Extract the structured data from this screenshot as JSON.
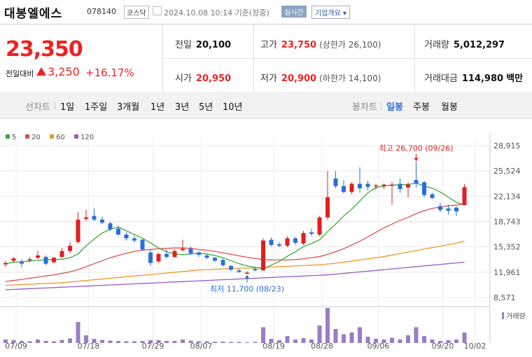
{
  "header": {
    "name": "대봉엘에스",
    "code": "078140",
    "market": "코스닥",
    "datetime": "2024.10.08 10:14 기준(장중)",
    "live": "실시간",
    "company_info": "기업개요"
  },
  "quote": {
    "price": "23,350",
    "compare_label": "전일대비",
    "change": "3,250",
    "change_pct": "+16.17%",
    "prev_close": {
      "label": "전일",
      "value": "20,100"
    },
    "high": {
      "label": "고가",
      "value": "23,750",
      "limit_label": "(상한가 26,100)"
    },
    "volume": {
      "label": "거래량",
      "value": "5,012,297"
    },
    "open": {
      "label": "시가",
      "value": "20,950"
    },
    "low": {
      "label": "저가",
      "value": "20,900",
      "limit_label": "(하한가 14,100)"
    },
    "amount": {
      "label": "거래대금",
      "value": "114,980",
      "unit": "백만"
    }
  },
  "tabs": {
    "line_label": "선차트",
    "periods": [
      "1일",
      "1주일",
      "3개월",
      "1년",
      "3년",
      "5년",
      "10년"
    ],
    "candle_label": "봉차트",
    "candles": [
      "일봉",
      "주봉",
      "월봉"
    ],
    "selected_candle": "일봉"
  },
  "colors": {
    "up": "#e02020",
    "down": "#2b6fd6",
    "ma5": "#3aaa35",
    "ma20": "#e05050",
    "ma60": "#f0962a",
    "ma120": "#9b59c9",
    "volume": "#9a7ec4"
  },
  "chart_data": {
    "type": "candlestick",
    "legend": [
      "5",
      "20",
      "60",
      "120"
    ],
    "y_ticks": [
      28915,
      25524,
      22134,
      18743,
      15352,
      11961,
      8571
    ],
    "ylim": [
      8571,
      28915
    ],
    "x_ticks": [
      "07/09",
      "07/18",
      "07/29",
      "08/07",
      "08/19",
      "08/28",
      "09/06",
      "09/20",
      "10/02"
    ],
    "volume_label": "거래량",
    "annotations": {
      "high": "최고 26,700 (09/26)",
      "low": "최저 11,700 (08/23)"
    },
    "candles": [
      {
        "o": 13000,
        "h": 13500,
        "l": 12700,
        "c": 13200
      },
      {
        "o": 13500,
        "h": 14000,
        "l": 13200,
        "c": 13800
      },
      {
        "o": 13400,
        "h": 13700,
        "l": 12600,
        "c": 13100
      },
      {
        "o": 13600,
        "h": 14000,
        "l": 13300,
        "c": 13700
      },
      {
        "o": 13900,
        "h": 14800,
        "l": 13700,
        "c": 14200
      },
      {
        "o": 14000,
        "h": 14200,
        "l": 12900,
        "c": 13100
      },
      {
        "o": 13300,
        "h": 14000,
        "l": 13100,
        "c": 13900
      },
      {
        "o": 14000,
        "h": 15200,
        "l": 13900,
        "c": 14800
      },
      {
        "o": 14800,
        "h": 16000,
        "l": 14500,
        "c": 15500
      },
      {
        "o": 16000,
        "h": 20000,
        "l": 15800,
        "c": 19000
      },
      {
        "o": 19100,
        "h": 20300,
        "l": 18800,
        "c": 19300
      },
      {
        "o": 19500,
        "h": 20500,
        "l": 18800,
        "c": 19000
      },
      {
        "o": 19000,
        "h": 19400,
        "l": 18400,
        "c": 18600
      },
      {
        "o": 18500,
        "h": 18700,
        "l": 17500,
        "c": 17700
      },
      {
        "o": 17800,
        "h": 18200,
        "l": 16800,
        "c": 17000
      },
      {
        "o": 17000,
        "h": 17300,
        "l": 16200,
        "c": 16500
      },
      {
        "o": 16500,
        "h": 16800,
        "l": 15900,
        "c": 16200
      },
      {
        "o": 16300,
        "h": 16400,
        "l": 14800,
        "c": 15000
      },
      {
        "o": 14600,
        "h": 15000,
        "l": 12800,
        "c": 13200
      },
      {
        "o": 13400,
        "h": 14600,
        "l": 13200,
        "c": 14400
      },
      {
        "o": 14400,
        "h": 15000,
        "l": 13800,
        "c": 14000
      },
      {
        "o": 14000,
        "h": 15000,
        "l": 13900,
        "c": 14800
      },
      {
        "o": 14900,
        "h": 16300,
        "l": 14700,
        "c": 15100
      },
      {
        "o": 15100,
        "h": 15400,
        "l": 14300,
        "c": 14500
      },
      {
        "o": 14600,
        "h": 14800,
        "l": 14000,
        "c": 14300
      },
      {
        "o": 14200,
        "h": 14400,
        "l": 13700,
        "c": 13900
      },
      {
        "o": 13900,
        "h": 14000,
        "l": 13300,
        "c": 13500
      },
      {
        "o": 13600,
        "h": 13800,
        "l": 12700,
        "c": 12900
      },
      {
        "o": 12800,
        "h": 12900,
        "l": 12100,
        "c": 12300
      },
      {
        "o": 12200,
        "h": 12400,
        "l": 11900,
        "c": 12000
      },
      {
        "o": 11900,
        "h": 12100,
        "l": 11700,
        "c": 11900
      },
      {
        "o": 12400,
        "h": 12700,
        "l": 12100,
        "c": 12200
      },
      {
        "o": 12200,
        "h": 16500,
        "l": 12100,
        "c": 16200
      },
      {
        "o": 16300,
        "h": 16600,
        "l": 15400,
        "c": 15600
      },
      {
        "o": 15700,
        "h": 16000,
        "l": 15300,
        "c": 15500
      },
      {
        "o": 15500,
        "h": 16800,
        "l": 15300,
        "c": 16500
      },
      {
        "o": 16500,
        "h": 16700,
        "l": 15600,
        "c": 15900
      },
      {
        "o": 15800,
        "h": 17500,
        "l": 15600,
        "c": 17200
      },
      {
        "o": 17300,
        "h": 17800,
        "l": 16800,
        "c": 17100
      },
      {
        "o": 17000,
        "h": 19500,
        "l": 16800,
        "c": 19300
      },
      {
        "o": 19300,
        "h": 25500,
        "l": 19000,
        "c": 22000
      },
      {
        "o": 24500,
        "h": 25500,
        "l": 23200,
        "c": 23500
      },
      {
        "o": 23500,
        "h": 24300,
        "l": 22500,
        "c": 22700
      },
      {
        "o": 22700,
        "h": 24000,
        "l": 22400,
        "c": 23800
      },
      {
        "o": 23800,
        "h": 26000,
        "l": 22600,
        "c": 23200
      },
      {
        "o": 23800,
        "h": 24200,
        "l": 22900,
        "c": 23400
      },
      {
        "o": 23500,
        "h": 23800,
        "l": 23000,
        "c": 23600
      },
      {
        "o": 23500,
        "h": 23800,
        "l": 23100,
        "c": 23700
      },
      {
        "o": 23600,
        "h": 24000,
        "l": 21000,
        "c": 23700
      },
      {
        "o": 23800,
        "h": 24500,
        "l": 22600,
        "c": 23100
      },
      {
        "o": 23300,
        "h": 24000,
        "l": 22000,
        "c": 23700
      },
      {
        "o": 24300,
        "h": 26700,
        "l": 23300,
        "c": 23800
      },
      {
        "o": 24000,
        "h": 24200,
        "l": 22000,
        "c": 22300
      },
      {
        "o": 22400,
        "h": 22600,
        "l": 21800,
        "c": 21900
      },
      {
        "o": 20800,
        "h": 21300,
        "l": 20000,
        "c": 20300
      },
      {
        "o": 20500,
        "h": 21000,
        "l": 19700,
        "c": 20200
      },
      {
        "o": 20600,
        "h": 20800,
        "l": 19500,
        "c": 20100
      },
      {
        "o": 20950,
        "h": 23750,
        "l": 20900,
        "c": 23350
      }
    ],
    "ma5": [
      13100,
      13300,
      13350,
      13450,
      13550,
      13600,
      13650,
      13700,
      13900,
      14400,
      15500,
      16400,
      17200,
      17700,
      18000,
      17500,
      17000,
      16500,
      15900,
      15200,
      14700,
      14400,
      14300,
      14400,
      14500,
      14400,
      14200,
      13900,
      13500,
      13100,
      12800,
      12600,
      12400,
      12900,
      13400,
      14100,
      14700,
      15400,
      15800,
      16300,
      17400,
      18400,
      19500,
      20400,
      21500,
      22600,
      23300,
      23500,
      23600,
      23700,
      23700,
      23900,
      23500,
      23200,
      22700,
      22000,
      21300,
      21000
    ],
    "ma20": [
      10700,
      10850,
      11000,
      11150,
      11300,
      11450,
      11600,
      11800,
      12000,
      12300,
      12700,
      13100,
      13500,
      13900,
      14200,
      14500,
      14750,
      14900,
      15000,
      15100,
      15150,
      15200,
      15200,
      15150,
      15000,
      14900,
      14750,
      14550,
      14350,
      14150,
      13950,
      13800,
      13650,
      13600,
      13600,
      13600,
      13650,
      13750,
      13900,
      14050,
      14350,
      14700,
      15100,
      15600,
      16100,
      16700,
      17300,
      17900,
      18400,
      18900,
      19300,
      19800,
      20200,
      20500,
      20700,
      20850,
      20950,
      21100
    ],
    "ma60": [
      10200,
      10250,
      10300,
      10350,
      10400,
      10450,
      10500,
      10550,
      10650,
      10750,
      10850,
      10950,
      11050,
      11150,
      11250,
      11350,
      11450,
      11550,
      11650,
      11750,
      11850,
      11950,
      12050,
      12150,
      12250,
      12300,
      12350,
      12400,
      12450,
      12500,
      12500,
      12550,
      12600,
      12650,
      12700,
      12750,
      12800,
      12850,
      12900,
      12950,
      13050,
      13150,
      13300,
      13450,
      13600,
      13750,
      13900,
      14050,
      14250,
      14450,
      14650,
      14850,
      15050,
      15250,
      15450,
      15650,
      15850,
      16100
    ],
    "ma120": [
      9600,
      9650,
      9700,
      9750,
      9800,
      9850,
      9900,
      9950,
      10000,
      10050,
      10100,
      10150,
      10200,
      10250,
      10300,
      10350,
      10400,
      10450,
      10500,
      10550,
      10600,
      10650,
      10700,
      10750,
      10800,
      10850,
      10900,
      10950,
      11000,
      11050,
      11100,
      11150,
      11200,
      11250,
      11300,
      11350,
      11400,
      11450,
      11500,
      11550,
      11600,
      11700,
      11800,
      11900,
      12000,
      12100,
      12200,
      12300,
      12400,
      12500,
      12600,
      12700,
      12800,
      12900,
      13000,
      13100,
      13200,
      13300
    ],
    "volume": [
      0.1,
      0.08,
      0.06,
      0.05,
      0.1,
      0.06,
      0.05,
      0.09,
      0.13,
      0.6,
      0.22,
      0.12,
      0.09,
      0.07,
      0.06,
      0.05,
      0.05,
      0.06,
      0.08,
      0.08,
      0.06,
      0.06,
      0.1,
      0.07,
      0.05,
      0.05,
      0.04,
      0.04,
      0.03,
      0.03,
      0.02,
      0.03,
      0.45,
      0.12,
      0.08,
      0.2,
      0.1,
      0.14,
      0.1,
      0.5,
      1.0,
      0.4,
      0.25,
      0.3,
      0.45,
      0.18,
      0.12,
      0.1,
      0.15,
      0.1,
      0.22,
      0.45,
      0.2,
      0.1,
      0.06,
      0.08,
      0.1,
      0.3
    ]
  }
}
